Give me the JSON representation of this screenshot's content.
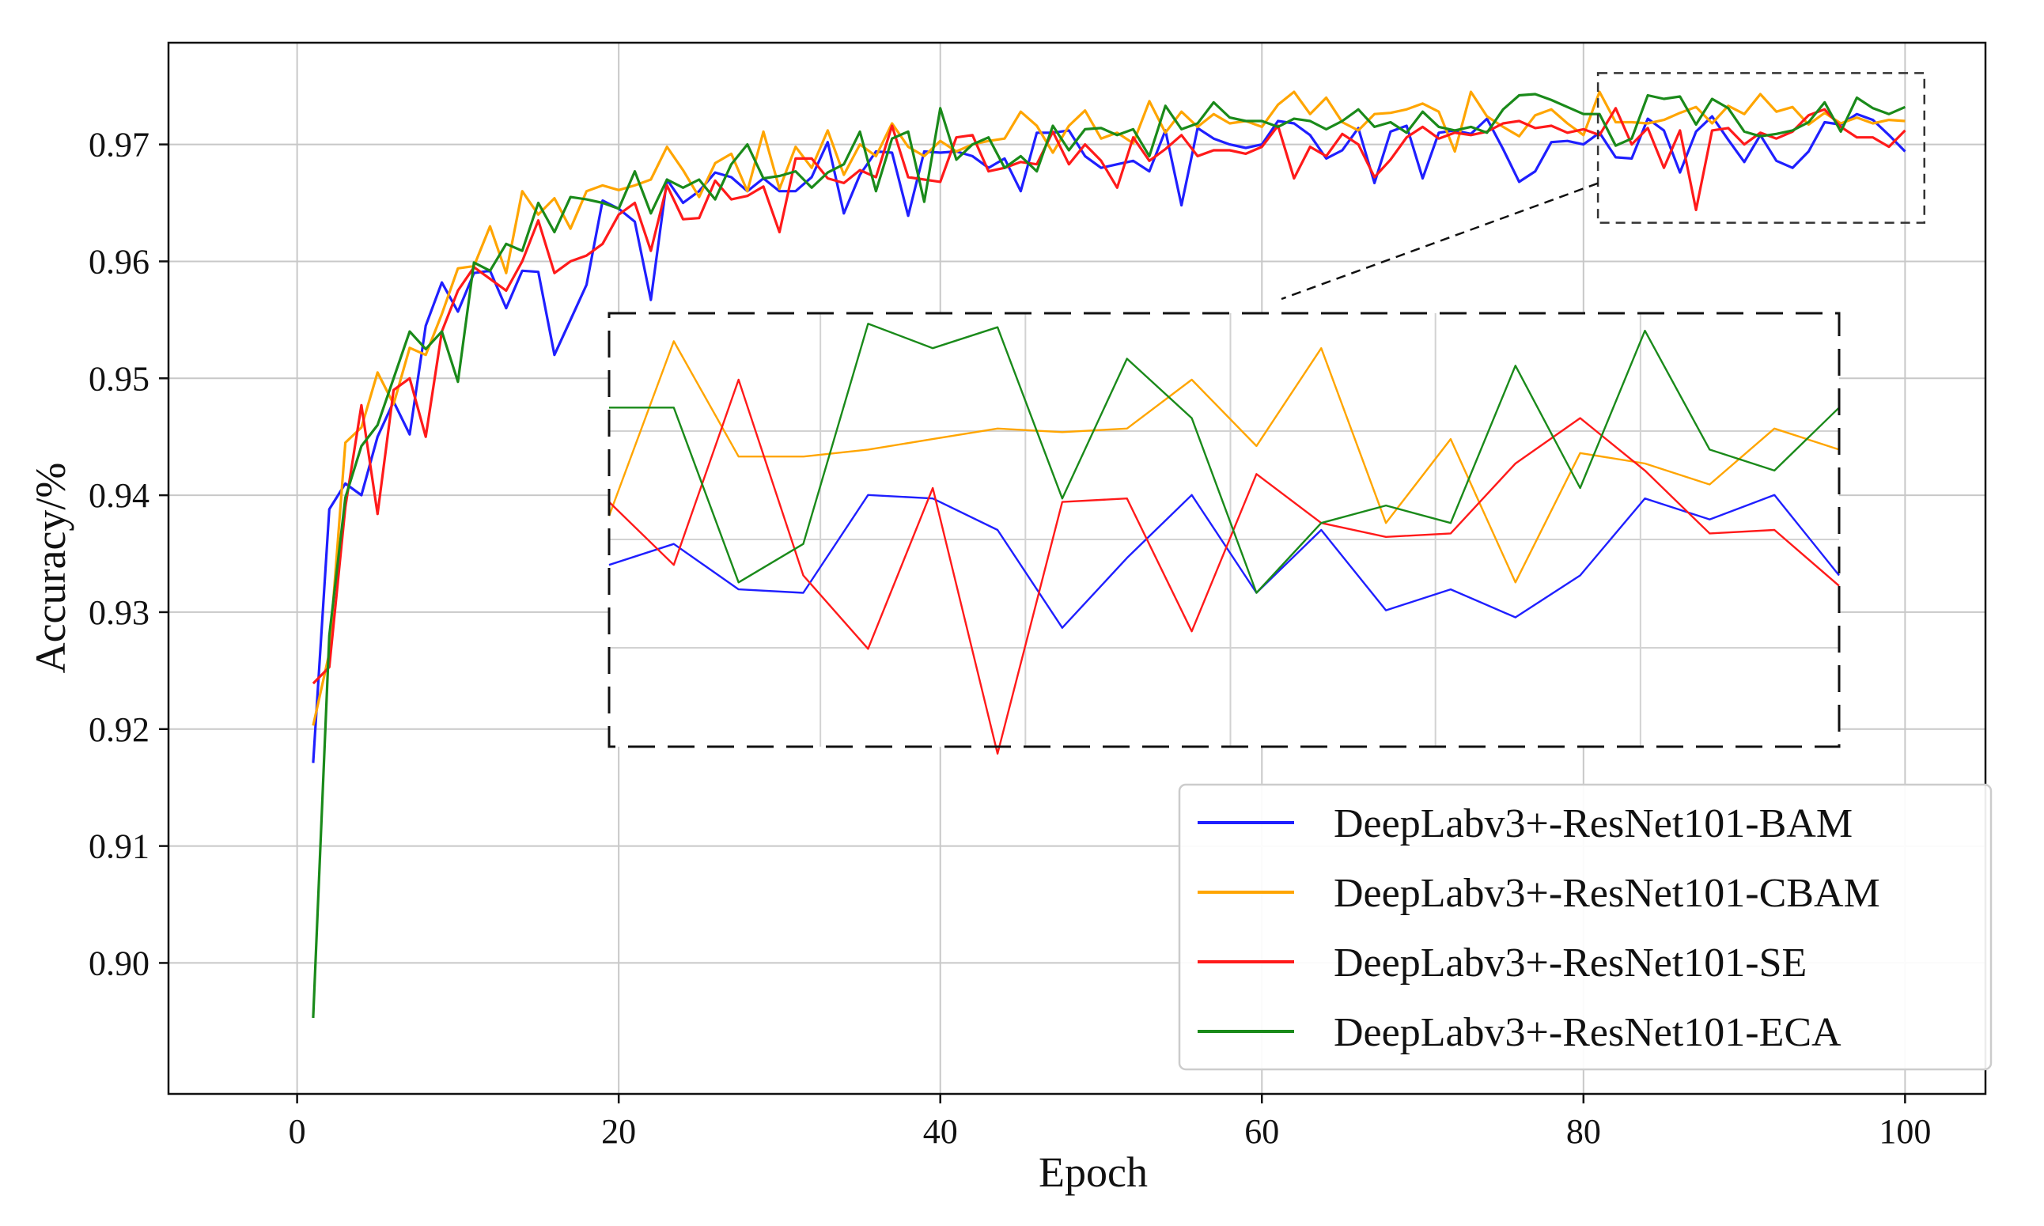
{
  "chart_data": {
    "type": "line",
    "title": "",
    "xlabel": "Epoch",
    "ylabel": "Accuracy/%",
    "xlim": [
      -8,
      105
    ],
    "ylim": [
      0.8888,
      0.9787
    ],
    "xticks": [
      0,
      20,
      40,
      60,
      80,
      100
    ],
    "yticks": [
      0.9,
      0.91,
      0.92,
      0.93,
      0.94,
      0.95,
      0.96,
      0.97
    ],
    "xtick_labels": [
      "0",
      "20",
      "40",
      "60",
      "80",
      "100"
    ],
    "ytick_labels": [
      "0.90",
      "0.91",
      "0.92",
      "0.93",
      "0.94",
      "0.95",
      "0.96",
      "0.97"
    ],
    "grid": true,
    "legend_position": "lower-right",
    "x": [
      1,
      2,
      3,
      4,
      5,
      6,
      7,
      8,
      9,
      10,
      11,
      12,
      13,
      14,
      15,
      16,
      17,
      18,
      19,
      20,
      21,
      22,
      23,
      24,
      25,
      26,
      27,
      28,
      29,
      30,
      31,
      32,
      33,
      34,
      35,
      36,
      37,
      38,
      39,
      40,
      41,
      42,
      43,
      44,
      45,
      46,
      47,
      48,
      49,
      50,
      51,
      52,
      53,
      54,
      55,
      56,
      57,
      58,
      59,
      60,
      61,
      62,
      63,
      64,
      65,
      66,
      67,
      68,
      69,
      70,
      71,
      72,
      73,
      74,
      75,
      76,
      77,
      78,
      79,
      80,
      81,
      82,
      83,
      84,
      85,
      86,
      87,
      88,
      89,
      90,
      91,
      92,
      93,
      94,
      95,
      96,
      97,
      98,
      99,
      100
    ],
    "series": [
      {
        "name": "DeepLabv3+-ResNet101-BAM",
        "color": "#1f1fff",
        "values": [
          0.9171,
          0.9388,
          0.941,
          0.94,
          0.945,
          0.948,
          0.9452,
          0.9545,
          0.9582,
          0.9557,
          0.959,
          0.9592,
          0.956,
          0.9592,
          0.9591,
          0.952,
          0.955,
          0.958,
          0.9652,
          0.9645,
          0.9634,
          0.9567,
          0.967,
          0.965,
          0.966,
          0.9676,
          0.9672,
          0.966,
          0.9671,
          0.966,
          0.966,
          0.9672,
          0.9702,
          0.9641,
          0.9674,
          0.9694,
          0.9693,
          0.9639,
          0.9694,
          0.9693,
          0.9694,
          0.969,
          0.968,
          0.9688,
          0.966,
          0.971,
          0.971,
          0.9712,
          0.969,
          0.968,
          0.9683,
          0.9686,
          0.9677,
          0.9712,
          0.9648,
          0.9714,
          0.9705,
          0.97,
          0.9697,
          0.97,
          0.972,
          0.9718,
          0.9708,
          0.9688,
          0.9695,
          0.9714,
          0.9667,
          0.9711,
          0.9716,
          0.9671,
          0.971,
          0.9712,
          0.9709,
          0.9722,
          0.9696,
          0.9668,
          0.9677,
          0.9702,
          0.9703,
          0.97,
          0.971,
          0.9689,
          0.9688,
          0.9722,
          0.9712,
          0.9676,
          0.9711,
          0.9724,
          0.9704,
          0.9685,
          0.9708,
          0.9686,
          0.968,
          0.9694,
          0.9719,
          0.9717,
          0.9726,
          0.9721,
          0.9708,
          0.9694
        ]
      },
      {
        "name": "DeepLabv3+-ResNet101-CBAM",
        "color": "#ffa500",
        "values": [
          0.9203,
          0.9265,
          0.9445,
          0.9458,
          0.9505,
          0.9478,
          0.9526,
          0.952,
          0.9555,
          0.9594,
          0.9596,
          0.963,
          0.959,
          0.966,
          0.964,
          0.9654,
          0.9628,
          0.966,
          0.9665,
          0.9661,
          0.9665,
          0.967,
          0.9698,
          0.9678,
          0.9655,
          0.9684,
          0.9692,
          0.966,
          0.9711,
          0.9662,
          0.9698,
          0.968,
          0.9712,
          0.9674,
          0.97,
          0.969,
          0.9718,
          0.9698,
          0.969,
          0.9703,
          0.9694,
          0.97,
          0.9703,
          0.9705,
          0.9728,
          0.9716,
          0.9693,
          0.9716,
          0.9729,
          0.9705,
          0.971,
          0.9701,
          0.9737,
          0.971,
          0.9728,
          0.9715,
          0.9726,
          0.9718,
          0.972,
          0.9715,
          0.9734,
          0.9745,
          0.9726,
          0.974,
          0.9719,
          0.9712,
          0.9726,
          0.9727,
          0.973,
          0.9735,
          0.9728,
          0.9694,
          0.9745,
          0.9724,
          0.9715,
          0.9707,
          0.9725,
          0.973,
          0.9718,
          0.9708,
          0.9745,
          0.9719,
          0.9719,
          0.9718,
          0.9721,
          0.9727,
          0.9732,
          0.9718,
          0.9733,
          0.9726,
          0.9743,
          0.9728,
          0.9732,
          0.9717,
          0.9727,
          0.9718,
          0.9723,
          0.9718,
          0.9721,
          0.972
        ]
      },
      {
        "name": "DeepLabv3+-ResNet101-SE",
        "color": "#ff1a1a",
        "values": [
          0.9239,
          0.9253,
          0.939,
          0.9477,
          0.9384,
          0.949,
          0.95,
          0.945,
          0.954,
          0.9575,
          0.9595,
          0.9585,
          0.9575,
          0.96,
          0.9635,
          0.959,
          0.96,
          0.9605,
          0.9615,
          0.964,
          0.965,
          0.9609,
          0.9665,
          0.9636,
          0.9637,
          0.9669,
          0.9653,
          0.9656,
          0.9664,
          0.9625,
          0.9688,
          0.9688,
          0.9671,
          0.9667,
          0.9678,
          0.9672,
          0.9716,
          0.9672,
          0.967,
          0.9668,
          0.9706,
          0.9708,
          0.9677,
          0.968,
          0.9685,
          0.9683,
          0.9711,
          0.9683,
          0.97,
          0.9686,
          0.9663,
          0.9706,
          0.9686,
          0.9696,
          0.9708,
          0.969,
          0.9695,
          0.9695,
          0.9692,
          0.9698,
          0.9716,
          0.9671,
          0.9698,
          0.969,
          0.9709,
          0.97,
          0.9672,
          0.9687,
          0.9706,
          0.9715,
          0.9705,
          0.971,
          0.9708,
          0.9711,
          0.9718,
          0.972,
          0.9714,
          0.9716,
          0.971,
          0.9713,
          0.9708,
          0.9731,
          0.97,
          0.9714,
          0.968,
          0.9712,
          0.9644,
          0.9712,
          0.9714,
          0.97,
          0.971,
          0.9705,
          0.9711,
          0.9725,
          0.973,
          0.9715,
          0.9706,
          0.9706,
          0.9698,
          0.9712
        ]
      },
      {
        "name": "DeepLabv3+-ResNet101-ECA",
        "color": "#1a8a1a",
        "values": [
          0.8953,
          0.928,
          0.9398,
          0.9442,
          0.946,
          0.95,
          0.954,
          0.9525,
          0.954,
          0.9497,
          0.9599,
          0.9592,
          0.9615,
          0.9609,
          0.965,
          0.9625,
          0.9655,
          0.9653,
          0.965,
          0.9645,
          0.9677,
          0.9641,
          0.967,
          0.9663,
          0.967,
          0.9653,
          0.9683,
          0.97,
          0.9671,
          0.9673,
          0.9677,
          0.9663,
          0.9676,
          0.9683,
          0.9711,
          0.966,
          0.9705,
          0.9711,
          0.9651,
          0.9731,
          0.9687,
          0.97,
          0.9706,
          0.968,
          0.969,
          0.9677,
          0.9716,
          0.9695,
          0.9713,
          0.9714,
          0.9708,
          0.9713,
          0.969,
          0.9733,
          0.9713,
          0.9718,
          0.9736,
          0.9723,
          0.972,
          0.972,
          0.9715,
          0.9722,
          0.972,
          0.9713,
          0.972,
          0.973,
          0.9715,
          0.9719,
          0.971,
          0.9728,
          0.9715,
          0.9712,
          0.9715,
          0.971,
          0.973,
          0.9742,
          0.9743,
          0.9738,
          0.9732,
          0.9726,
          0.9726,
          0.9699,
          0.9705,
          0.9742,
          0.9739,
          0.9741,
          0.9717,
          0.9739,
          0.9731,
          0.9711,
          0.9707,
          0.9709,
          0.9712,
          0.9719,
          0.9736,
          0.9711,
          0.974,
          0.9731,
          0.9726,
          0.9732
        ]
      }
    ],
    "inset": {
      "description": "zoom of epochs 81-100",
      "x": [
        81,
        82,
        83,
        84,
        85,
        86,
        87,
        88,
        89,
        90,
        91,
        92,
        93,
        94,
        95,
        96,
        97,
        98,
        99,
        100
      ],
      "ylim": [
        0.9636,
        0.976
      ],
      "series": [
        {
          "name": "DeepLabv3+-ResNet101-BAM",
          "values": [
            0.9688,
            0.9694,
            0.9681,
            0.968,
            0.9708,
            0.9707,
            0.9698,
            0.967,
            0.969,
            0.9708,
            0.968,
            0.9698,
            0.9675,
            0.9681,
            0.9673,
            0.9685,
            0.9707,
            0.9701,
            0.9708,
            0.9685
          ]
        },
        {
          "name": "DeepLabv3+-ResNet101-CBAM",
          "values": [
            0.9702,
            0.9752,
            0.9719,
            0.9719,
            0.9721,
            0.9724,
            0.9727,
            0.9726,
            0.9727,
            0.9741,
            0.9722,
            0.975,
            0.97,
            0.9724,
            0.9683,
            0.972,
            0.9717,
            0.9711,
            0.9727,
            0.9721
          ]
        },
        {
          "name": "DeepLabv3+-ResNet101-SE",
          "values": [
            0.9706,
            0.9688,
            0.9741,
            0.9685,
            0.9664,
            0.971,
            0.9634,
            0.9706,
            0.9707,
            0.9669,
            0.9714,
            0.97,
            0.9696,
            0.9697,
            0.9717,
            0.973,
            0.9715,
            0.9697,
            0.9698,
            0.9682
          ]
        },
        {
          "name": "DeepLabv3+-ResNet101-ECA",
          "values": [
            0.9733,
            0.9733,
            0.9683,
            0.9694,
            0.9757,
            0.975,
            0.9756,
            0.9707,
            0.9747,
            0.973,
            0.968,
            0.97,
            0.9705,
            0.97,
            0.9745,
            0.971,
            0.9755,
            0.9721,
            0.9715,
            0.9733
          ]
        }
      ]
    }
  }
}
